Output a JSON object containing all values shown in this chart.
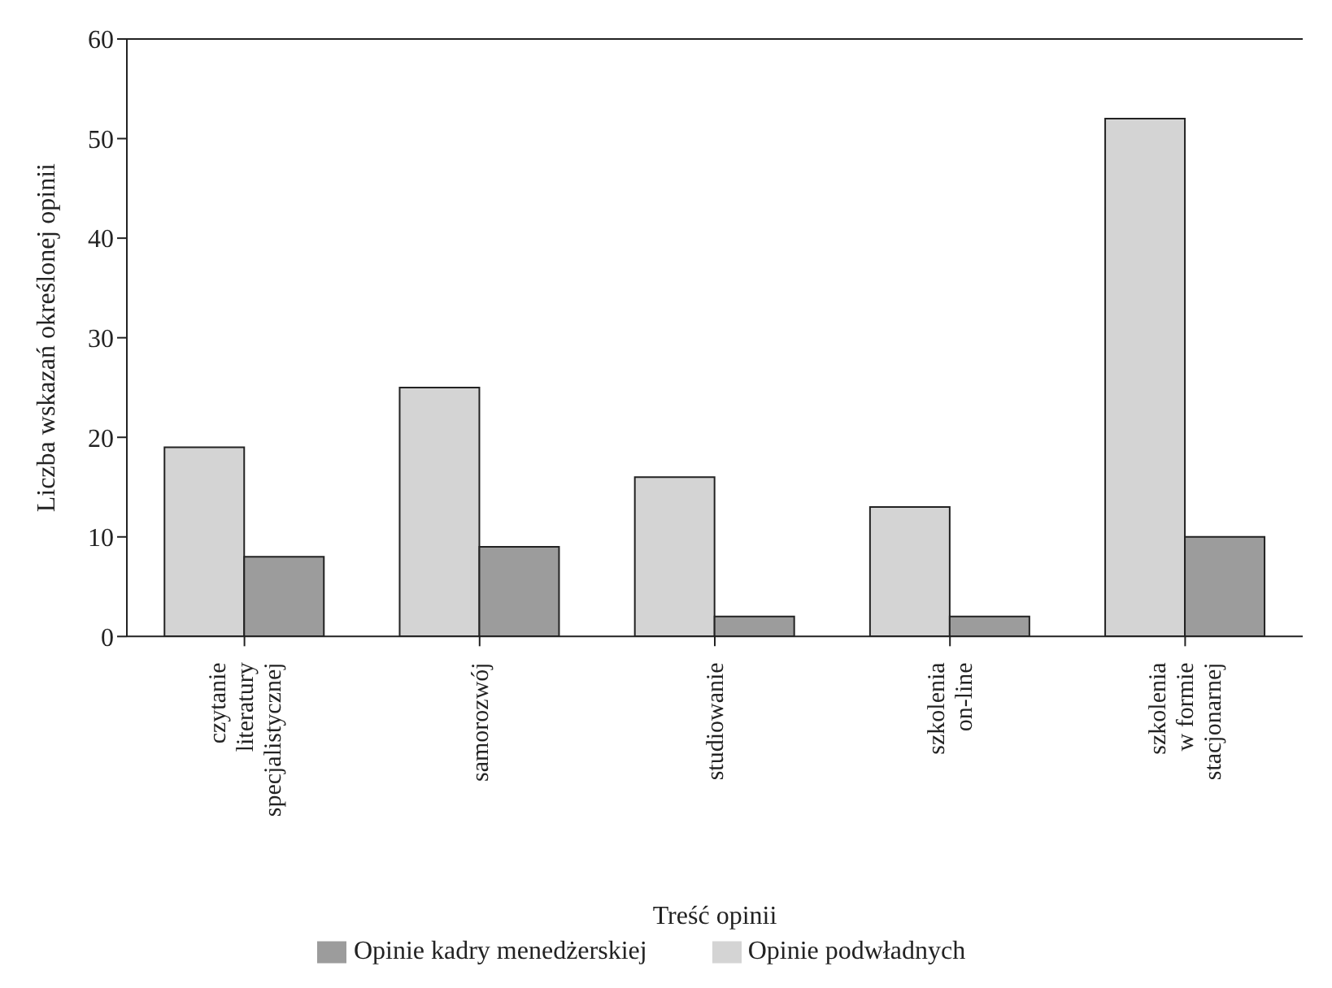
{
  "chart_data": {
    "type": "bar",
    "xlabel": "Treść opinii",
    "ylabel": "Liczba wskazań określonej opinii",
    "categories": [
      "czytanie\nliteratury\nspecjalistycznej",
      "samorozwój",
      "studiowanie",
      "szkolenia\non-line",
      "szkolenia\nw formie\nstacjonarnej"
    ],
    "series": [
      {
        "name": "Opinie podwładnych",
        "color": "#d4d4d4",
        "values": [
          19,
          25,
          16,
          13,
          52
        ]
      },
      {
        "name": "Opinie kadry menedżerskiej",
        "color": "#9c9c9c",
        "values": [
          8,
          9,
          2,
          2,
          10
        ]
      }
    ],
    "ylim": [
      0,
      60
    ],
    "yticks": [
      0,
      10,
      20,
      30,
      40,
      50,
      60
    ],
    "grid": false,
    "legend": "bottom"
  }
}
